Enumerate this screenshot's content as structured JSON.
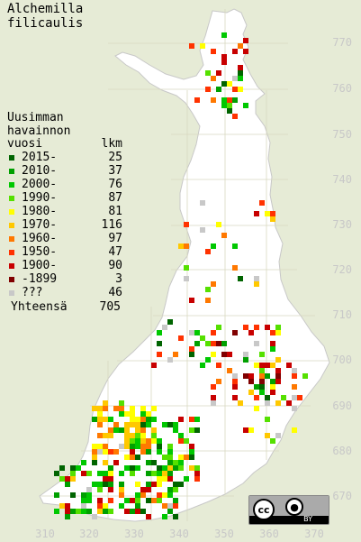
{
  "title": [
    "Alchemilla",
    "filicaulis"
  ],
  "legend": {
    "header_lines": [
      "Uusimman",
      "havainnon"
    ],
    "year_col": "vuosi",
    "count_col": "lkm",
    "rows": [
      {
        "period": "2015-",
        "count": "25",
        "color": "#006400"
      },
      {
        "period": "2010-",
        "count": "37",
        "color": "#00a000"
      },
      {
        "period": "2000-",
        "count": "76",
        "color": "#00c800"
      },
      {
        "period": "1990-",
        "count": "87",
        "color": "#55e000"
      },
      {
        "period": "1980-",
        "count": "81",
        "color": "#ffff00"
      },
      {
        "period": "1970-",
        "count": "116",
        "color": "#ffc800"
      },
      {
        "period": "1960-",
        "count": "97",
        "color": "#ff7800"
      },
      {
        "period": "1950-",
        "count": "47",
        "color": "#ff3200"
      },
      {
        "period": "1900-",
        "count": "90",
        "color": "#c80000"
      },
      {
        "period": "-1899",
        "count": "3",
        "color": "#800000"
      },
      {
        "period": "???",
        "count": "46",
        "color": "#c8c8c8"
      }
    ],
    "total_label": "Yhteensä",
    "total_count": "705"
  },
  "grid_y_labels": [
    "770",
    "760",
    "750",
    "740",
    "730",
    "720",
    "710",
    "700",
    "690",
    "680",
    "670"
  ],
  "grid_x_labels": [
    "310",
    "320",
    "330",
    "340",
    "350",
    "360",
    "370"
  ],
  "license": {
    "icon_a": "cc-icon",
    "icon_b": "attribution-icon",
    "text": "BY"
  }
}
